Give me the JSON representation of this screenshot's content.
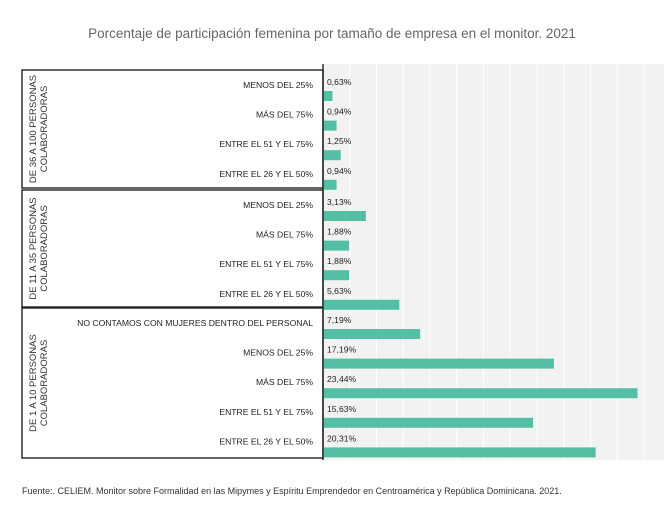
{
  "chart_data": {
    "type": "bar",
    "orientation": "horizontal",
    "title": "Porcentaje de participación femenina por tamaño de empresa en el monitor. 2021",
    "source": "Fuente:. CELIEM. Monitor sobre Formalidad en las Mipymes y Espíritu Emprendedor en Centroamérica y República Dominicana. 2021.",
    "xlim": [
      0,
      24
    ],
    "grid": true,
    "groups": [
      {
        "label_line1": "DE 36 A 100 PERSONAS",
        "label_line2": "COLABORADORAS",
        "categories": [
          "MENOS DEL 25%",
          "MÁS DEL 75%",
          "ENTRE EL 51 Y EL 75%",
          "ENTRE EL 26 Y EL 50%"
        ],
        "values": [
          0.63,
          0.94,
          1.25,
          0.94
        ],
        "value_labels": [
          "0,63%",
          "0,94%",
          "1,25%",
          "0,94%"
        ]
      },
      {
        "label_line1": "DE 11 A 35 PERSONAS",
        "label_line2": "COLABORADORAS",
        "categories": [
          "MENOS DEL 25%",
          "MÁS DEL 75%",
          "ENTRE EL 51 Y EL 75%",
          "ENTRE EL 26 Y EL 50%"
        ],
        "values": [
          3.13,
          1.88,
          1.88,
          5.63
        ],
        "value_labels": [
          "3,13%",
          "1,88%",
          "1,88%",
          "5,63%"
        ]
      },
      {
        "label_line1": "DE 1 A 10 PERSONAS",
        "label_line2": "COLABORADORAS",
        "categories": [
          "NO CONTAMOS CON MUJERES DENTRO DEL PERSONAL",
          "MENOS DEL 25%",
          "MÁS DEL 75%",
          "ENTRE EL 51 Y EL 75%",
          "ENTRE EL 26 Y EL 50%"
        ],
        "values": [
          7.19,
          17.19,
          23.44,
          15.63,
          20.31
        ],
        "value_labels": [
          "7,19%",
          "17,19%",
          "23,44%",
          "15,63%",
          "20,31%"
        ]
      }
    ]
  },
  "colors": {
    "bar": "#55bfa6",
    "plot_bg": "#f2f2f2",
    "grid": "#ffffff",
    "frame": "#222222"
  }
}
